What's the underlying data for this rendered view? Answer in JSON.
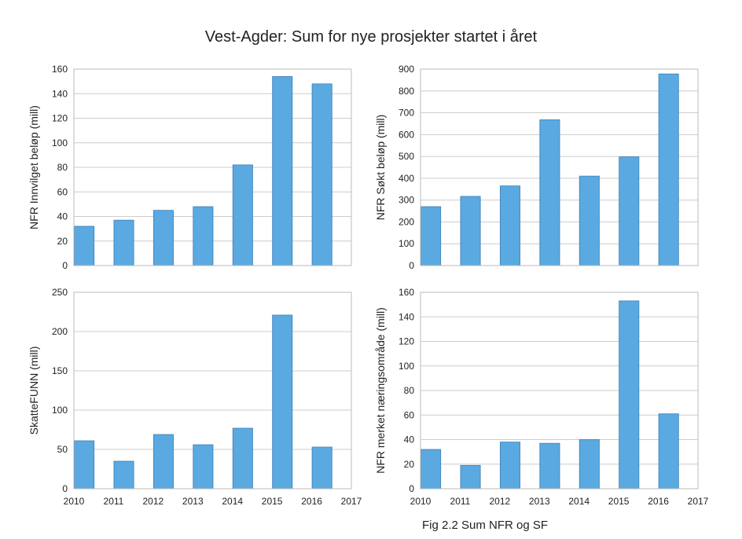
{
  "title": "Vest-Agder: Sum for nye prosjekter startet i året",
  "caption": "Fig 2.2 Sum NFR og SF",
  "bar_color": "#5aa9e1",
  "chart_data": [
    {
      "type": "bar",
      "ylabel": "NFR Innvilget beløp (mill)",
      "x": [
        2010,
        2011,
        2012,
        2013,
        2014,
        2015,
        2016
      ],
      "values": [
        32,
        37,
        45,
        48,
        82,
        154,
        148
      ],
      "yticks": [
        0,
        20,
        40,
        60,
        80,
        100,
        120,
        140,
        160
      ],
      "ylim": [
        0,
        160
      ],
      "xlim": [
        2010,
        2017
      ],
      "xticks": [],
      "grid": true
    },
    {
      "type": "bar",
      "ylabel": "NFR Søkt beløp (mill)",
      "x": [
        2010,
        2011,
        2012,
        2013,
        2014,
        2015,
        2016
      ],
      "values": [
        270,
        317,
        365,
        668,
        410,
        498,
        878
      ],
      "yticks": [
        0,
        100,
        200,
        300,
        400,
        500,
        600,
        700,
        800,
        900
      ],
      "ylim": [
        0,
        900
      ],
      "xlim": [
        2010,
        2017
      ],
      "xticks": [],
      "grid": true
    },
    {
      "type": "bar",
      "ylabel": "SkatteFUNN (mill)",
      "x": [
        2010,
        2011,
        2012,
        2013,
        2014,
        2015,
        2016
      ],
      "values": [
        61,
        35,
        69,
        56,
        77,
        221,
        53
      ],
      "yticks": [
        0,
        50,
        100,
        150,
        200,
        250
      ],
      "ylim": [
        0,
        250
      ],
      "xlim": [
        2010,
        2017
      ],
      "xticks": [
        "2010",
        "2011",
        "2012",
        "2013",
        "2014",
        "2015",
        "2016",
        "2017"
      ],
      "grid": true
    },
    {
      "type": "bar",
      "ylabel": "NFR merket næringsområde (mill)",
      "x": [
        2010,
        2011,
        2012,
        2013,
        2014,
        2015,
        2016
      ],
      "values": [
        32,
        19,
        38,
        37,
        40,
        153,
        61
      ],
      "yticks": [
        0,
        20,
        40,
        60,
        80,
        100,
        120,
        140,
        160
      ],
      "ylim": [
        0,
        160
      ],
      "xlim": [
        2010,
        2017
      ],
      "xticks": [
        "2010",
        "2011",
        "2012",
        "2013",
        "2014",
        "2015",
        "2016",
        "2017"
      ],
      "grid": true
    }
  ]
}
